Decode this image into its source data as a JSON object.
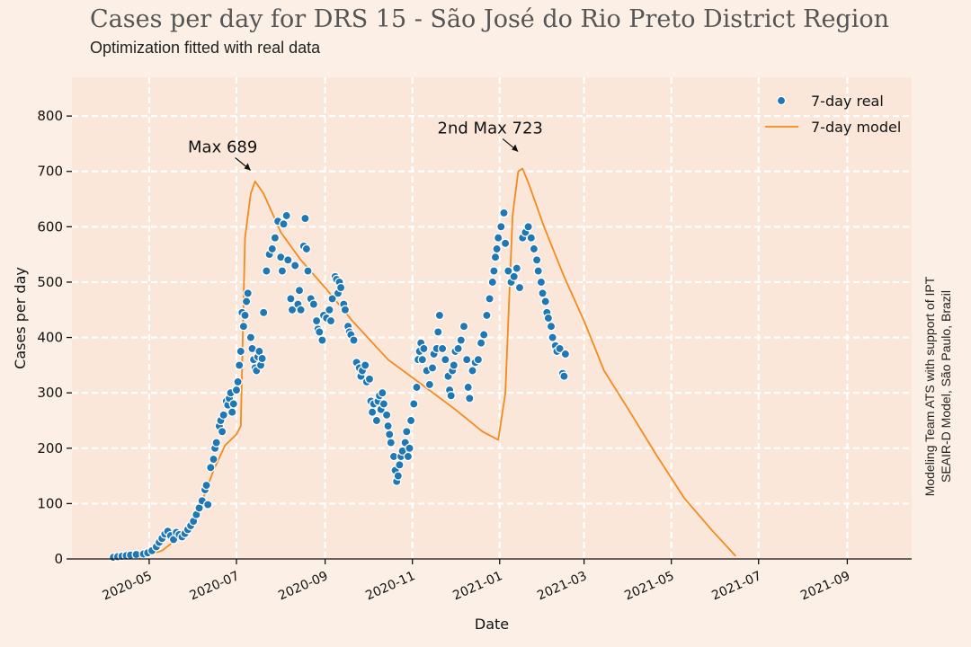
{
  "header": {
    "title": "Cases per day for DRS 15 - São José do Rio Preto District Region",
    "subtitle": "Optimization fitted with real data"
  },
  "side_note": {
    "line1": "Modeling Team ATS with support of IPT",
    "line2": "SEAIR-D Model, São Paulo, Brazil"
  },
  "colors": {
    "background": "#fcf0e6",
    "plot_background": "#fae7da",
    "grid": "#ffffff",
    "real": "#1f77b4",
    "model": "#f28a1e"
  },
  "chart_data": {
    "type": "scatter",
    "xlabel": "Date",
    "ylabel": "Cases per day",
    "xlim": [
      "2020-03-08",
      "2021-10-16"
    ],
    "ylim": [
      0,
      870
    ],
    "yticks": [
      0,
      100,
      200,
      300,
      400,
      500,
      600,
      700,
      800
    ],
    "xticks": [
      "2020-05",
      "2020-07",
      "2020-09",
      "2020-11",
      "2021-01",
      "2021-03",
      "2021-05",
      "2021-07",
      "2021-09"
    ],
    "grid": true,
    "legend": {
      "position": "top-right",
      "entries": [
        "7-day real",
        "7-day model"
      ]
    },
    "annotations": [
      {
        "text": "Max  689",
        "date": "2020-07-14",
        "value": 689
      },
      {
        "text": "2nd Max 723",
        "date": "2021-01-17",
        "value": 723
      }
    ],
    "series": [
      {
        "name": "7-day real",
        "kind": "scatter",
        "points": [
          [
            "2020-04-06",
            3
          ],
          [
            "2020-04-09",
            4
          ],
          [
            "2020-04-12",
            5
          ],
          [
            "2020-04-15",
            6
          ],
          [
            "2020-04-18",
            7
          ],
          [
            "2020-04-22",
            8
          ],
          [
            "2020-04-27",
            9
          ],
          [
            "2020-04-30",
            11
          ],
          [
            "2020-05-03",
            15
          ],
          [
            "2020-05-06",
            22
          ],
          [
            "2020-05-08",
            30
          ],
          [
            "2020-05-10",
            37
          ],
          [
            "2020-05-12",
            45
          ],
          [
            "2020-05-14",
            50
          ],
          [
            "2020-05-16",
            42
          ],
          [
            "2020-05-18",
            35
          ],
          [
            "2020-05-20",
            48
          ],
          [
            "2020-05-22",
            44
          ],
          [
            "2020-05-24",
            40
          ],
          [
            "2020-05-26",
            46
          ],
          [
            "2020-05-28",
            53
          ],
          [
            "2020-05-30",
            60
          ],
          [
            "2020-06-01",
            68
          ],
          [
            "2020-06-03",
            80
          ],
          [
            "2020-06-05",
            92
          ],
          [
            "2020-06-07",
            105
          ],
          [
            "2020-06-09",
            125
          ],
          [
            "2020-06-10",
            133
          ],
          [
            "2020-06-11",
            98
          ],
          [
            "2020-06-13",
            165
          ],
          [
            "2020-06-15",
            180
          ],
          [
            "2020-06-16",
            200
          ],
          [
            "2020-06-17",
            210
          ],
          [
            "2020-06-19",
            240
          ],
          [
            "2020-06-20",
            250
          ],
          [
            "2020-06-21",
            230
          ],
          [
            "2020-06-22",
            260
          ],
          [
            "2020-06-24",
            285
          ],
          [
            "2020-06-25",
            278
          ],
          [
            "2020-06-26",
            290
          ],
          [
            "2020-06-27",
            300
          ],
          [
            "2020-06-28",
            265
          ],
          [
            "2020-06-29",
            280
          ],
          [
            "2020-07-01",
            305
          ],
          [
            "2020-07-02",
            320
          ],
          [
            "2020-07-03",
            350
          ],
          [
            "2020-07-04",
            375
          ],
          [
            "2020-07-05",
            445
          ],
          [
            "2020-07-06",
            420
          ],
          [
            "2020-07-07",
            440
          ],
          [
            "2020-07-08",
            465
          ],
          [
            "2020-07-09",
            480
          ],
          [
            "2020-07-11",
            400
          ],
          [
            "2020-07-12",
            380
          ],
          [
            "2020-07-13",
            360
          ],
          [
            "2020-07-14",
            345
          ],
          [
            "2020-07-15",
            340
          ],
          [
            "2020-07-16",
            365
          ],
          [
            "2020-07-17",
            375
          ],
          [
            "2020-07-18",
            350
          ],
          [
            "2020-07-19",
            362
          ],
          [
            "2020-07-20",
            445
          ],
          [
            "2020-07-22",
            520
          ],
          [
            "2020-07-24",
            550
          ],
          [
            "2020-07-26",
            560
          ],
          [
            "2020-07-28",
            580
          ],
          [
            "2020-07-30",
            610
          ],
          [
            "2020-08-01",
            545
          ],
          [
            "2020-08-02",
            520
          ],
          [
            "2020-08-03",
            605
          ],
          [
            "2020-08-05",
            620
          ],
          [
            "2020-08-06",
            540
          ],
          [
            "2020-08-08",
            470
          ],
          [
            "2020-08-09",
            450
          ],
          [
            "2020-08-11",
            530
          ],
          [
            "2020-08-13",
            460
          ],
          [
            "2020-08-14",
            485
          ],
          [
            "2020-08-15",
            450
          ],
          [
            "2020-08-17",
            565
          ],
          [
            "2020-08-18",
            615
          ],
          [
            "2020-08-19",
            560
          ],
          [
            "2020-08-20",
            520
          ],
          [
            "2020-08-22",
            470
          ],
          [
            "2020-08-24",
            460
          ],
          [
            "2020-08-26",
            430
          ],
          [
            "2020-08-27",
            415
          ],
          [
            "2020-08-28",
            410
          ],
          [
            "2020-08-30",
            395
          ],
          [
            "2020-08-31",
            440
          ],
          [
            "2020-09-02",
            435
          ],
          [
            "2020-09-04",
            450
          ],
          [
            "2020-09-05",
            430
          ],
          [
            "2020-09-06",
            470
          ],
          [
            "2020-09-08",
            510
          ],
          [
            "2020-09-09",
            505
          ],
          [
            "2020-09-10",
            480
          ],
          [
            "2020-09-11",
            500
          ],
          [
            "2020-09-12",
            490
          ],
          [
            "2020-09-14",
            460
          ],
          [
            "2020-09-15",
            450
          ],
          [
            "2020-09-17",
            420
          ],
          [
            "2020-09-18",
            410
          ],
          [
            "2020-09-19",
            405
          ],
          [
            "2020-09-21",
            395
          ],
          [
            "2020-09-23",
            355
          ],
          [
            "2020-09-25",
            345
          ],
          [
            "2020-09-26",
            330
          ],
          [
            "2020-09-27",
            340
          ],
          [
            "2020-09-29",
            350
          ],
          [
            "2020-09-30",
            320
          ],
          [
            "2020-10-02",
            325
          ],
          [
            "2020-10-03",
            285
          ],
          [
            "2020-10-04",
            265
          ],
          [
            "2020-10-05",
            280
          ],
          [
            "2020-10-07",
            250
          ],
          [
            "2020-10-08",
            285
          ],
          [
            "2020-10-09",
            295
          ],
          [
            "2020-10-10",
            270
          ],
          [
            "2020-10-11",
            300
          ],
          [
            "2020-10-12",
            280
          ],
          [
            "2020-10-14",
            260
          ],
          [
            "2020-10-15",
            240
          ],
          [
            "2020-10-16",
            225
          ],
          [
            "2020-10-17",
            210
          ],
          [
            "2020-10-19",
            185
          ],
          [
            "2020-10-20",
            160
          ],
          [
            "2020-10-21",
            140
          ],
          [
            "2020-10-22",
            150
          ],
          [
            "2020-10-23",
            170
          ],
          [
            "2020-10-24",
            185
          ],
          [
            "2020-10-25",
            195
          ],
          [
            "2020-10-27",
            210
          ],
          [
            "2020-10-28",
            230
          ],
          [
            "2020-10-29",
            185
          ],
          [
            "2020-10-30",
            200
          ],
          [
            "2020-10-31",
            250
          ],
          [
            "2020-11-02",
            280
          ],
          [
            "2020-11-04",
            310
          ],
          [
            "2020-11-05",
            360
          ],
          [
            "2020-11-06",
            375
          ],
          [
            "2020-11-07",
            390
          ],
          [
            "2020-11-08",
            360
          ],
          [
            "2020-11-09",
            380
          ],
          [
            "2020-11-11",
            340
          ],
          [
            "2020-11-13",
            315
          ],
          [
            "2020-11-15",
            345
          ],
          [
            "2020-11-16",
            370
          ],
          [
            "2020-11-18",
            380
          ],
          [
            "2020-11-19",
            410
          ],
          [
            "2020-11-20",
            440
          ],
          [
            "2020-11-22",
            380
          ],
          [
            "2020-11-24",
            360
          ],
          [
            "2020-11-26",
            330
          ],
          [
            "2020-11-27",
            305
          ],
          [
            "2020-11-28",
            295
          ],
          [
            "2020-11-29",
            340
          ],
          [
            "2020-11-30",
            350
          ],
          [
            "2020-12-01",
            375
          ],
          [
            "2020-12-03",
            380
          ],
          [
            "2020-12-05",
            395
          ],
          [
            "2020-12-07",
            420
          ],
          [
            "2020-12-09",
            360
          ],
          [
            "2020-12-10",
            310
          ],
          [
            "2020-12-11",
            290
          ],
          [
            "2020-12-13",
            340
          ],
          [
            "2020-12-15",
            355
          ],
          [
            "2020-12-17",
            360
          ],
          [
            "2020-12-19",
            390
          ],
          [
            "2020-12-21",
            405
          ],
          [
            "2020-12-23",
            440
          ],
          [
            "2020-12-25",
            470
          ],
          [
            "2020-12-27",
            500
          ],
          [
            "2020-12-28",
            520
          ],
          [
            "2020-12-29",
            545
          ],
          [
            "2020-12-30",
            560
          ],
          [
            "2020-12-31",
            580
          ],
          [
            "2021-01-02",
            600
          ],
          [
            "2021-01-04",
            625
          ],
          [
            "2021-01-05",
            570
          ],
          [
            "2021-01-07",
            520
          ],
          [
            "2021-01-09",
            500
          ],
          [
            "2021-01-11",
            510
          ],
          [
            "2021-01-13",
            525
          ],
          [
            "2021-01-15",
            490
          ],
          [
            "2021-01-17",
            580
          ],
          [
            "2021-01-19",
            590
          ],
          [
            "2021-01-21",
            600
          ],
          [
            "2021-01-23",
            580
          ],
          [
            "2021-01-25",
            560
          ],
          [
            "2021-01-27",
            540
          ],
          [
            "2021-01-28",
            520
          ],
          [
            "2021-01-30",
            500
          ],
          [
            "2021-01-31",
            480
          ],
          [
            "2021-02-02",
            465
          ],
          [
            "2021-02-03",
            445
          ],
          [
            "2021-02-04",
            435
          ],
          [
            "2021-02-06",
            420
          ],
          [
            "2021-02-07",
            400
          ],
          [
            "2021-02-09",
            385
          ],
          [
            "2021-02-10",
            375
          ],
          [
            "2021-02-12",
            380
          ],
          [
            "2021-02-14",
            335
          ],
          [
            "2021-02-15",
            330
          ],
          [
            "2021-02-16",
            370
          ]
        ]
      },
      {
        "name": "7-day model",
        "kind": "line",
        "points": [
          [
            "2020-04-10",
            0
          ],
          [
            "2020-04-25",
            3
          ],
          [
            "2020-05-10",
            15
          ],
          [
            "2020-05-25",
            45
          ],
          [
            "2020-06-05",
            90
          ],
          [
            "2020-06-15",
            160
          ],
          [
            "2020-06-23",
            205
          ],
          [
            "2020-07-01",
            225
          ],
          [
            "2020-07-04",
            240
          ],
          [
            "2020-07-07",
            580
          ],
          [
            "2020-07-11",
            660
          ],
          [
            "2020-07-14",
            682
          ],
          [
            "2020-07-20",
            660
          ],
          [
            "2020-08-01",
            590
          ],
          [
            "2020-08-15",
            540
          ],
          [
            "2020-09-01",
            490
          ],
          [
            "2020-09-20",
            430
          ],
          [
            "2020-10-15",
            360
          ],
          [
            "2020-11-05",
            320
          ],
          [
            "2020-12-01",
            270
          ],
          [
            "2020-12-20",
            230
          ],
          [
            "2020-12-31",
            215
          ],
          [
            "2021-01-05",
            300
          ],
          [
            "2021-01-10",
            620
          ],
          [
            "2021-01-14",
            700
          ],
          [
            "2021-01-17",
            705
          ],
          [
            "2021-01-21",
            680
          ],
          [
            "2021-02-01",
            600
          ],
          [
            "2021-02-15",
            510
          ],
          [
            "2021-03-01",
            430
          ],
          [
            "2021-03-15",
            340
          ],
          [
            "2021-04-01",
            270
          ],
          [
            "2021-04-20",
            190
          ],
          [
            "2021-05-10",
            110
          ],
          [
            "2021-05-30",
            50
          ],
          [
            "2021-06-15",
            5
          ]
        ]
      }
    ]
  }
}
